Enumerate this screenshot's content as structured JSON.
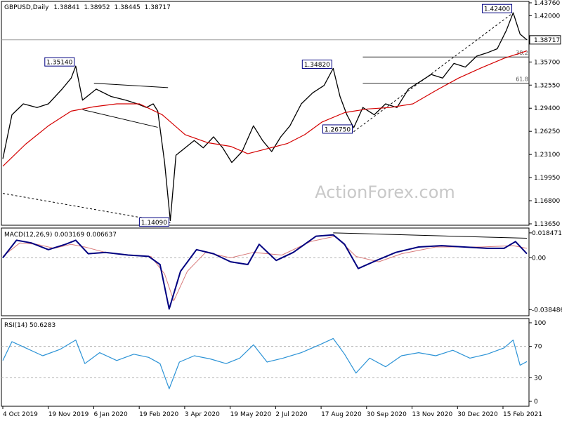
{
  "chart_data": {
    "type": "line",
    "symbol": "GBPUSD",
    "timeframe": "Daily",
    "ohlc_header": [
      "1.38841",
      "1.38952",
      "1.38445",
      "1.38717"
    ],
    "watermark": "ActionForex.com",
    "x_tick_labels": [
      "4 Oct 2019",
      "19 Nov 2019",
      "6 Jan 2020",
      "19 Feb 2020",
      "3 Apr 2020",
      "19 May 2020",
      "2 Jul 2020",
      "17 Aug 2020",
      "30 Sep 2020",
      "13 Nov 2020",
      "30 Dec 2020",
      "15 Feb 2021"
    ],
    "price_panel": {
      "y_ticks": [
        1.4376,
        1.42,
        1.3871,
        1.357,
        1.3255,
        1.294,
        1.2625,
        1.231,
        1.1995,
        1.168,
        1.1365
      ],
      "y_tick_labels": [
        "1.43760",
        "1.42000",
        "1.38717",
        "1.35700",
        "1.32550",
        "1.29400",
        "1.26250",
        "1.23100",
        "1.19950",
        "1.16800",
        "1.13650"
      ],
      "ylim": [
        1.1365,
        1.4376
      ],
      "current_price": 1.38717,
      "current_price_label": "1.38717",
      "price_series": [
        {
          "t": 0,
          "v": 1.225
        },
        {
          "t": 8,
          "v": 1.285
        },
        {
          "t": 18,
          "v": 1.3
        },
        {
          "t": 30,
          "v": 1.295
        },
        {
          "t": 40,
          "v": 1.3
        },
        {
          "t": 52,
          "v": 1.32
        },
        {
          "t": 60,
          "v": 1.335
        },
        {
          "t": 64,
          "v": 1.3514
        },
        {
          "t": 70,
          "v": 1.305
        },
        {
          "t": 82,
          "v": 1.32
        },
        {
          "t": 95,
          "v": 1.31
        },
        {
          "t": 108,
          "v": 1.305
        },
        {
          "t": 118,
          "v": 1.3
        },
        {
          "t": 126,
          "v": 1.295
        },
        {
          "t": 132,
          "v": 1.3
        },
        {
          "t": 136,
          "v": 1.29
        },
        {
          "t": 142,
          "v": 1.22
        },
        {
          "t": 147,
          "v": 1.1409
        },
        {
          "t": 152,
          "v": 1.23
        },
        {
          "t": 160,
          "v": 1.24
        },
        {
          "t": 168,
          "v": 1.25
        },
        {
          "t": 176,
          "v": 1.24
        },
        {
          "t": 185,
          "v": 1.255
        },
        {
          "t": 193,
          "v": 1.24
        },
        {
          "t": 201,
          "v": 1.22
        },
        {
          "t": 210,
          "v": 1.235
        },
        {
          "t": 220,
          "v": 1.27
        },
        {
          "t": 228,
          "v": 1.25
        },
        {
          "t": 236,
          "v": 1.235
        },
        {
          "t": 244,
          "v": 1.255
        },
        {
          "t": 252,
          "v": 1.27
        },
        {
          "t": 262,
          "v": 1.3
        },
        {
          "t": 272,
          "v": 1.315
        },
        {
          "t": 282,
          "v": 1.325
        },
        {
          "t": 290,
          "v": 1.3482
        },
        {
          "t": 296,
          "v": 1.31
        },
        {
          "t": 302,
          "v": 1.285
        },
        {
          "t": 308,
          "v": 1.2675
        },
        {
          "t": 316,
          "v": 1.295
        },
        {
          "t": 326,
          "v": 1.285
        },
        {
          "t": 336,
          "v": 1.3
        },
        {
          "t": 346,
          "v": 1.295
        },
        {
          "t": 356,
          "v": 1.32
        },
        {
          "t": 366,
          "v": 1.33
        },
        {
          "t": 376,
          "v": 1.34
        },
        {
          "t": 386,
          "v": 1.335
        },
        {
          "t": 396,
          "v": 1.355
        },
        {
          "t": 406,
          "v": 1.35
        },
        {
          "t": 416,
          "v": 1.365
        },
        {
          "t": 426,
          "v": 1.37
        },
        {
          "t": 434,
          "v": 1.375
        },
        {
          "t": 442,
          "v": 1.4
        },
        {
          "t": 448,
          "v": 1.424
        },
        {
          "t": 454,
          "v": 1.395
        },
        {
          "t": 460,
          "v": 1.38717
        }
      ],
      "moving_average": [
        {
          "t": 0,
          "v": 1.215
        },
        {
          "t": 20,
          "v": 1.245
        },
        {
          "t": 40,
          "v": 1.27
        },
        {
          "t": 60,
          "v": 1.29
        },
        {
          "t": 80,
          "v": 1.296
        },
        {
          "t": 100,
          "v": 1.3
        },
        {
          "t": 120,
          "v": 1.3
        },
        {
          "t": 140,
          "v": 1.285
        },
        {
          "t": 160,
          "v": 1.258
        },
        {
          "t": 180,
          "v": 1.247
        },
        {
          "t": 200,
          "v": 1.242
        },
        {
          "t": 215,
          "v": 1.232
        },
        {
          "t": 230,
          "v": 1.238
        },
        {
          "t": 250,
          "v": 1.246
        },
        {
          "t": 265,
          "v": 1.258
        },
        {
          "t": 280,
          "v": 1.275
        },
        {
          "t": 300,
          "v": 1.288
        },
        {
          "t": 320,
          "v": 1.293
        },
        {
          "t": 340,
          "v": 1.295
        },
        {
          "t": 360,
          "v": 1.3
        },
        {
          "t": 380,
          "v": 1.318
        },
        {
          "t": 400,
          "v": 1.335
        },
        {
          "t": 420,
          "v": 1.349
        },
        {
          "t": 440,
          "v": 1.362
        },
        {
          "t": 460,
          "v": 1.372
        }
      ],
      "peak_labels": [
        {
          "t": 64,
          "v": 1.3514,
          "text": "1.35140"
        },
        {
          "t": 147,
          "v": 1.1409,
          "text": "1.14090"
        },
        {
          "t": 290,
          "v": 1.3482,
          "text": "1.34820"
        },
        {
          "t": 308,
          "v": 1.2675,
          "text": "1.26750"
        },
        {
          "t": 448,
          "v": 1.424,
          "text": "1.42400"
        }
      ],
      "fib_levels": [
        {
          "label": "38.2",
          "v": 1.3638,
          "t_start": 316
        },
        {
          "label": "61.8",
          "v": 1.3281,
          "t_start": 316
        }
      ],
      "horizontal_line": {
        "v": 1.38717
      }
    },
    "macd_panel": {
      "legend": "MACD(12,26,9) 0.003169 0.006637",
      "y_tick_labels": [
        "0.018471",
        "0.00",
        "-0.038486"
      ],
      "ylim": [
        -0.042,
        0.0205
      ],
      "ticks": [
        0.018471,
        0.0,
        -0.038486
      ],
      "macd": [
        {
          "t": 0,
          "v": 0.0
        },
        {
          "t": 12,
          "v": 0.013
        },
        {
          "t": 25,
          "v": 0.011
        },
        {
          "t": 40,
          "v": 0.006
        },
        {
          "t": 55,
          "v": 0.01
        },
        {
          "t": 64,
          "v": 0.013
        },
        {
          "t": 75,
          "v": 0.003
        },
        {
          "t": 90,
          "v": 0.004
        },
        {
          "t": 110,
          "v": 0.002
        },
        {
          "t": 128,
          "v": 0.001
        },
        {
          "t": 138,
          "v": -0.005
        },
        {
          "t": 146,
          "v": -0.038
        },
        {
          "t": 156,
          "v": -0.01
        },
        {
          "t": 170,
          "v": 0.006
        },
        {
          "t": 185,
          "v": 0.003
        },
        {
          "t": 200,
          "v": -0.003
        },
        {
          "t": 215,
          "v": -0.005
        },
        {
          "t": 225,
          "v": 0.01
        },
        {
          "t": 240,
          "v": -0.002
        },
        {
          "t": 255,
          "v": 0.004
        },
        {
          "t": 275,
          "v": 0.016
        },
        {
          "t": 290,
          "v": 0.017
        },
        {
          "t": 300,
          "v": 0.01
        },
        {
          "t": 312,
          "v": -0.008
        },
        {
          "t": 328,
          "v": -0.002
        },
        {
          "t": 345,
          "v": 0.004
        },
        {
          "t": 365,
          "v": 0.008
        },
        {
          "t": 385,
          "v": 0.009
        },
        {
          "t": 405,
          "v": 0.008
        },
        {
          "t": 425,
          "v": 0.007
        },
        {
          "t": 440,
          "v": 0.007
        },
        {
          "t": 450,
          "v": 0.012
        },
        {
          "t": 460,
          "v": 0.003
        }
      ],
      "signal": [
        {
          "t": 0,
          "v": 0.001
        },
        {
          "t": 15,
          "v": 0.011
        },
        {
          "t": 30,
          "v": 0.01
        },
        {
          "t": 45,
          "v": 0.007
        },
        {
          "t": 60,
          "v": 0.01
        },
        {
          "t": 72,
          "v": 0.008
        },
        {
          "t": 90,
          "v": 0.004
        },
        {
          "t": 110,
          "v": 0.002
        },
        {
          "t": 130,
          "v": 0.001
        },
        {
          "t": 142,
          "v": -0.012
        },
        {
          "t": 150,
          "v": -0.032
        },
        {
          "t": 162,
          "v": -0.01
        },
        {
          "t": 178,
          "v": 0.004
        },
        {
          "t": 200,
          "v": 0.0
        },
        {
          "t": 220,
          "v": 0.004
        },
        {
          "t": 245,
          "v": 0.002
        },
        {
          "t": 270,
          "v": 0.012
        },
        {
          "t": 292,
          "v": 0.016
        },
        {
          "t": 310,
          "v": 0.001
        },
        {
          "t": 330,
          "v": -0.003
        },
        {
          "t": 350,
          "v": 0.003
        },
        {
          "t": 380,
          "v": 0.008
        },
        {
          "t": 420,
          "v": 0.008
        },
        {
          "t": 448,
          "v": 0.009
        },
        {
          "t": 460,
          "v": 0.007
        }
      ],
      "trendline": [
        {
          "t": 290,
          "v": 0.0185
        },
        {
          "t": 460,
          "v": 0.0145
        }
      ]
    },
    "rsi_panel": {
      "legend": "RSI(14) 50.6283",
      "y_tick_labels": [
        "100",
        "70",
        "30",
        "0"
      ],
      "ticks": [
        100,
        70,
        30,
        0
      ],
      "ylim": [
        0,
        100
      ],
      "levels": [
        70,
        30
      ],
      "rsi": [
        {
          "t": 0,
          "v": 52
        },
        {
          "t": 8,
          "v": 76
        },
        {
          "t": 20,
          "v": 68
        },
        {
          "t": 35,
          "v": 58
        },
        {
          "t": 50,
          "v": 66
        },
        {
          "t": 64,
          "v": 78
        },
        {
          "t": 72,
          "v": 48
        },
        {
          "t": 85,
          "v": 62
        },
        {
          "t": 100,
          "v": 52
        },
        {
          "t": 115,
          "v": 60
        },
        {
          "t": 128,
          "v": 56
        },
        {
          "t": 138,
          "v": 48
        },
        {
          "t": 146,
          "v": 16
        },
        {
          "t": 155,
          "v": 50
        },
        {
          "t": 168,
          "v": 58
        },
        {
          "t": 182,
          "v": 54
        },
        {
          "t": 196,
          "v": 48
        },
        {
          "t": 208,
          "v": 55
        },
        {
          "t": 220,
          "v": 72
        },
        {
          "t": 232,
          "v": 50
        },
        {
          "t": 246,
          "v": 55
        },
        {
          "t": 262,
          "v": 62
        },
        {
          "t": 278,
          "v": 72
        },
        {
          "t": 290,
          "v": 80
        },
        {
          "t": 300,
          "v": 60
        },
        {
          "t": 310,
          "v": 36
        },
        {
          "t": 322,
          "v": 55
        },
        {
          "t": 336,
          "v": 44
        },
        {
          "t": 350,
          "v": 58
        },
        {
          "t": 365,
          "v": 62
        },
        {
          "t": 380,
          "v": 58
        },
        {
          "t": 395,
          "v": 65
        },
        {
          "t": 410,
          "v": 55
        },
        {
          "t": 425,
          "v": 60
        },
        {
          "t": 440,
          "v": 68
        },
        {
          "t": 448,
          "v": 78
        },
        {
          "t": 454,
          "v": 46
        },
        {
          "t": 460,
          "v": 50.6283
        }
      ]
    },
    "colors": {
      "price": "#000000",
      "moving_average": "#d40000",
      "macd": "#000080",
      "signal": "#d87a7a",
      "rsi": "#2c93d6",
      "watermark": "#c8c8c8",
      "label_border": "#000080"
    }
  }
}
